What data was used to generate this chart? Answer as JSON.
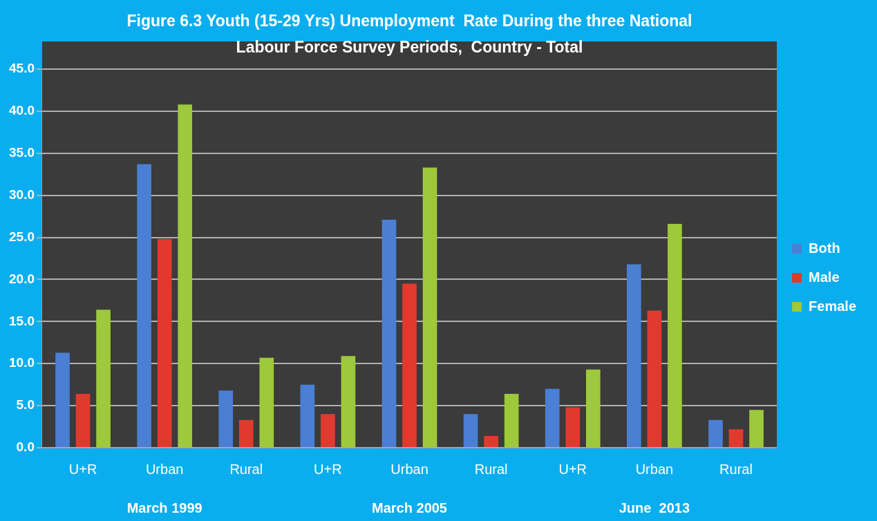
{
  "chart_data": {
    "type": "bar",
    "title": "Figure 6.3 Youth (15-29 Yrs) Unemployment  Rate During the three National Labour Force Survey Periods,  Country - Total",
    "categories": [
      "U+R",
      "Urban",
      "Rural",
      "U+R",
      "Urban",
      "Rural",
      "U+R",
      "Urban",
      "Rural"
    ],
    "series": [
      {
        "name": "Both",
        "color": "#4a7fd4",
        "values": [
          11.3,
          33.7,
          6.8,
          7.5,
          27.1,
          4.0,
          7.0,
          21.8,
          3.3
        ]
      },
      {
        "name": "Male",
        "color": "#e03a2e",
        "values": [
          6.4,
          24.8,
          3.3,
          4.0,
          19.5,
          1.4,
          4.8,
          16.3,
          2.2
        ]
      },
      {
        "name": "Female",
        "color": "#9dc93a",
        "values": [
          16.4,
          40.8,
          10.7,
          10.9,
          33.3,
          6.4,
          9.3,
          26.6,
          4.5
        ]
      }
    ],
    "annotations": [
      "March 1999",
      "March 2005",
      "June  2013"
    ],
    "ylim": [
      0,
      45
    ],
    "yticks": [
      {
        "value": 0,
        "label": "0.0"
      },
      {
        "value": 5,
        "label": "5.0"
      },
      {
        "value": 10,
        "label": "10.0"
      },
      {
        "value": 15,
        "label": "15.0"
      },
      {
        "value": 20,
        "label": "20.0"
      },
      {
        "value": 25,
        "label": "25.0"
      },
      {
        "value": 30,
        "label": "30.0"
      },
      {
        "value": 35,
        "label": "35.0"
      },
      {
        "value": 40,
        "label": "40.0"
      },
      {
        "value": 45,
        "label": "45.0"
      }
    ],
    "grid": "y",
    "legend": "right"
  }
}
